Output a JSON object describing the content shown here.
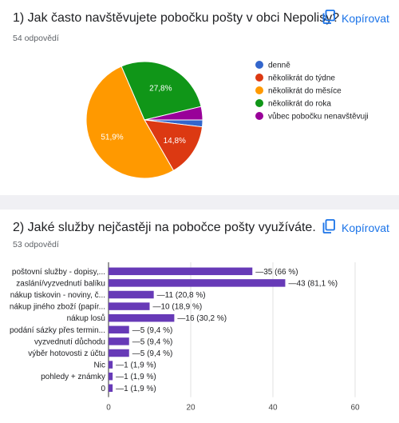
{
  "copy_label": "Kopírovat",
  "q1": {
    "title": "1) Jak často navštěvujete pobočku pošty v obci Nepolisy?",
    "responses": "54 odpovědí"
  },
  "q2": {
    "title": "2) Jaké služby nejčastěji na pobočce pošty využíváte.",
    "responses": "53 odpovědí"
  },
  "chart_data": [
    {
      "type": "pie",
      "categories": [
        "denně",
        "několikrát do týdne",
        "několikrát do měsíce",
        "několikrát do roka",
        "vůbec pobočku nenavštěvuji"
      ],
      "values": [
        1.9,
        14.8,
        51.9,
        27.8,
        3.7
      ],
      "data_labels": [
        "",
        "14,8%",
        "51,9%",
        "27,8%",
        ""
      ],
      "colors": [
        "#3366cc",
        "#dc3912",
        "#ff9900",
        "#109618",
        "#990099"
      ],
      "legend_position": "right"
    },
    {
      "type": "bar",
      "orientation": "horizontal",
      "categories": [
        "poštovní služby - dopisy,...",
        "zaslání/vyzvednutí balíku",
        "nákup tiskovin - noviny, č...",
        "nákup jiného zboží (papír...",
        "nákup losů",
        "podání sázky přes termin...",
        "vyzvednutí důchodu",
        "výběr hotovosti z účtu",
        "Nic",
        "pohledy + známky",
        "0"
      ],
      "values": [
        35,
        43,
        11,
        10,
        16,
        5,
        5,
        5,
        1,
        1,
        1
      ],
      "data_labels": [
        "35 (66 %)",
        "43 (81,1 %)",
        "11 (20,8 %)",
        "10 (18,9 %)",
        "16 (30,2 %)",
        "5 (9,4 %)",
        "5 (9,4 %)",
        "5 (9,4 %)",
        "1 (1,9 %)",
        "1 (1,9 %)",
        "1 (1,9 %)"
      ],
      "xlim": [
        0,
        60
      ],
      "xticks": [
        "0",
        "20",
        "40",
        "60"
      ],
      "color": "#673ab7",
      "grid": true
    }
  ]
}
